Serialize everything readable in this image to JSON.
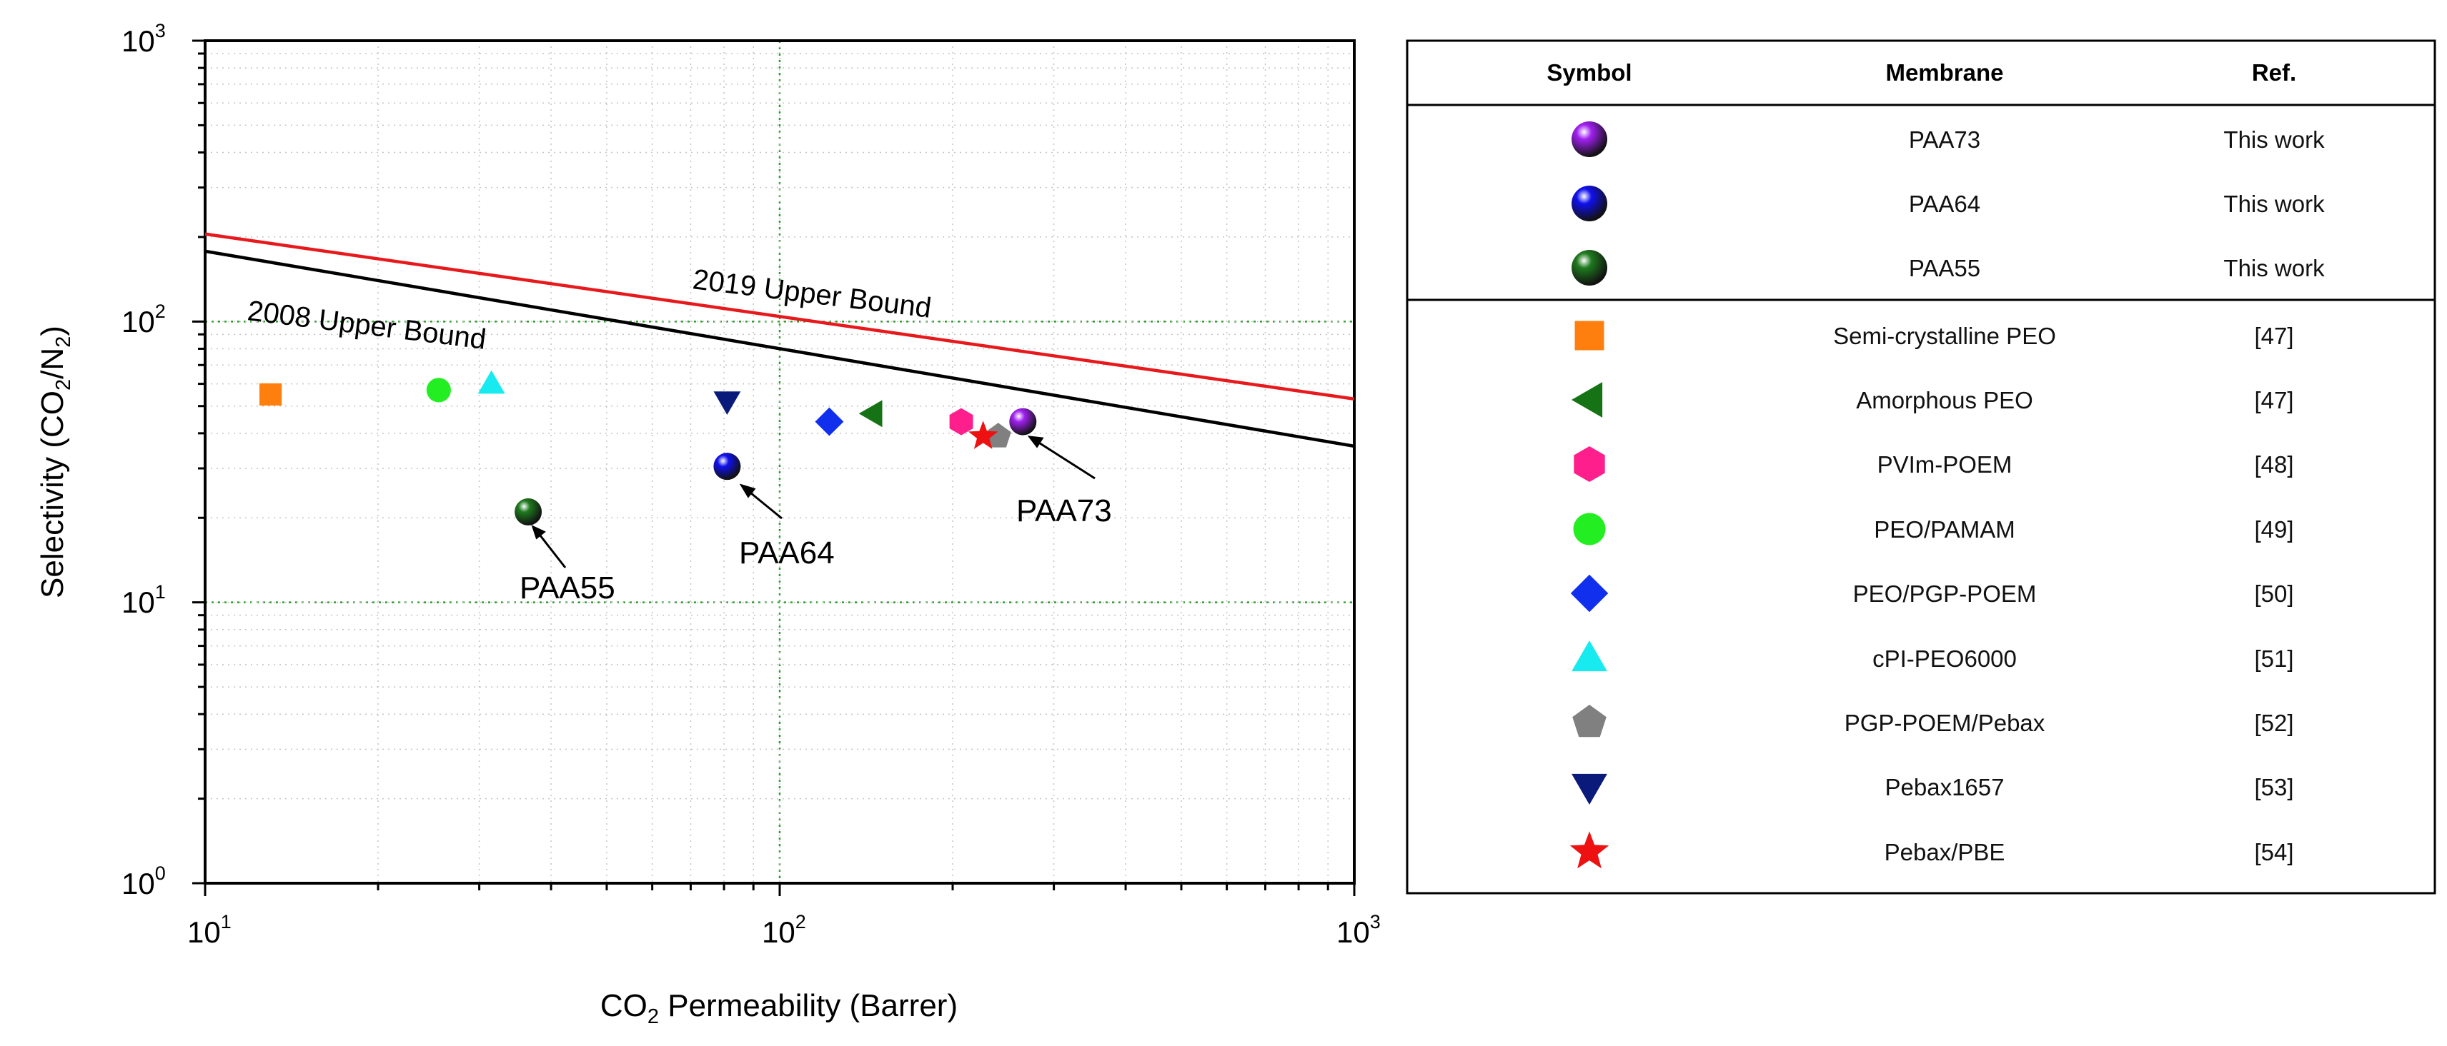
{
  "chart_data": {
    "type": "scatter",
    "x_scale": "log",
    "y_scale": "log",
    "xlim": [
      10,
      1000
    ],
    "ylim": [
      1,
      1000
    ],
    "xlabel": {
      "pre": "CO",
      "sub": "2",
      "post": " Permeability (Barrer)"
    },
    "ylabel": {
      "pre": "Selectivity (CO",
      "sub1": "2",
      "mid": "/N",
      "sub2": "2",
      "post": ")"
    },
    "x_ticks": [
      {
        "base": "10",
        "exp": "1"
      },
      {
        "base": "10",
        "exp": "2"
      },
      {
        "base": "10",
        "exp": "3"
      }
    ],
    "y_ticks": [
      {
        "base": "10",
        "exp": "0"
      },
      {
        "base": "10",
        "exp": "1"
      },
      {
        "base": "10",
        "exp": "2"
      },
      {
        "base": "10",
        "exp": "3"
      }
    ],
    "grid": true,
    "lines": [
      {
        "name": "2019 Upper Bound",
        "color": "#e8191c",
        "x": [
          10,
          1000
        ],
        "y": [
          205,
          53
        ]
      },
      {
        "name": "2008 Upper Bound",
        "color": "#000000",
        "x": [
          10,
          1000
        ],
        "y": [
          178,
          36
        ]
      }
    ],
    "series": [
      {
        "name": "PAA73",
        "marker": "sphere",
        "color": "#a020f0",
        "x": 265,
        "y": 44,
        "ref": "This work"
      },
      {
        "name": "PAA64",
        "marker": "sphere",
        "color": "#1010ee",
        "x": 81,
        "y": 30.5,
        "ref": "This work"
      },
      {
        "name": "PAA55",
        "marker": "sphere",
        "color": "#1f7a1f",
        "x": 36.5,
        "y": 21,
        "ref": "This work"
      },
      {
        "name": "Semi-crystalline PEO",
        "marker": "square",
        "color": "#ff7f0e",
        "x": 13,
        "y": 55,
        "ref": "[47]"
      },
      {
        "name": "Amorphous PEO",
        "marker": "triangle-left",
        "color": "#157315",
        "x": 145,
        "y": 47,
        "ref": "[47]"
      },
      {
        "name": "PVIm-POEM",
        "marker": "hexagon",
        "color": "#ff1f8c",
        "x": 207,
        "y": 44,
        "ref": "[48]"
      },
      {
        "name": "PEO/PAMAM",
        "marker": "circle",
        "color": "#22ee22",
        "x": 25.5,
        "y": 57,
        "ref": "[49]"
      },
      {
        "name": "PEO/PGP-POEM",
        "marker": "diamond",
        "color": "#1030ee",
        "x": 122,
        "y": 44,
        "ref": "[50]"
      },
      {
        "name": "cPI-PEO6000",
        "marker": "triangle-up",
        "color": "#18ebf0",
        "x": 31.5,
        "y": 60,
        "ref": "[51]"
      },
      {
        "name": "PGP-POEM/Pebax",
        "marker": "pentagon",
        "color": "#808080",
        "x": 240,
        "y": 39,
        "ref": "[52]"
      },
      {
        "name": "Pebax1657",
        "marker": "triangle-down",
        "color": "#0a1a7a",
        "x": 81,
        "y": 52,
        "ref": "[53]"
      },
      {
        "name": "Pebax/PBE",
        "marker": "star",
        "color": "#ee1111",
        "x": 226,
        "y": 39,
        "ref": "[54]"
      }
    ],
    "annotations": [
      {
        "text": "2019 Upper Bound"
      },
      {
        "text": "2008 Upper Bound"
      },
      {
        "text": "PAA73",
        "target": "PAA73"
      },
      {
        "text": "PAA64",
        "target": "PAA64"
      },
      {
        "text": "PAA55",
        "target": "PAA55"
      }
    ]
  },
  "legend_table": {
    "headers": [
      "Symbol",
      "Membrane",
      "Ref."
    ]
  }
}
